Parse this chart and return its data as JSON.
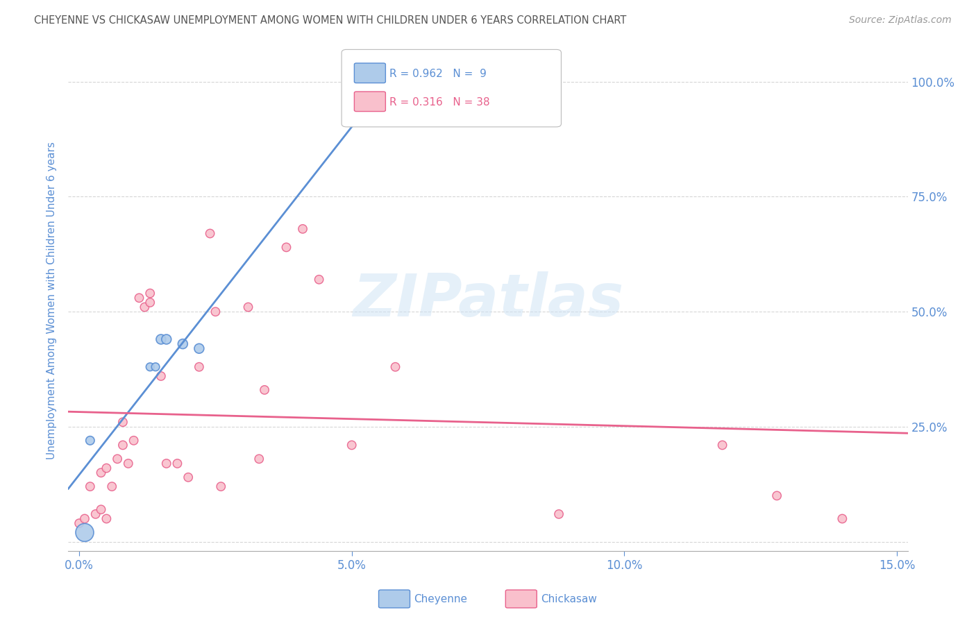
{
  "title": "CHEYENNE VS CHICKASAW UNEMPLOYMENT AMONG WOMEN WITH CHILDREN UNDER 6 YEARS CORRELATION CHART",
  "source": "Source: ZipAtlas.com",
  "ylabel": "Unemployment Among Women with Children Under 6 years",
  "watermark": "ZIPatlas",
  "legend_label1": "Cheyenne",
  "legend_label2": "Chickasaw",
  "R_cheyenne": 0.962,
  "N_cheyenne": 9,
  "R_chickasaw": 0.316,
  "N_chickasaw": 38,
  "cheyenne_color": "#aecbea",
  "chickasaw_color": "#f9c0cc",
  "cheyenne_line_color": "#5b8fd4",
  "chickasaw_line_color": "#e8618c",
  "title_color": "#555555",
  "axis_color": "#5b8fd4",
  "grid_color": "#cccccc",
  "background_color": "#ffffff",
  "cheyenne_x": [
    0.001,
    0.002,
    0.013,
    0.014,
    0.015,
    0.016,
    0.019,
    0.022,
    0.056
  ],
  "cheyenne_y": [
    0.02,
    0.22,
    0.38,
    0.38,
    0.44,
    0.44,
    0.43,
    0.42,
    0.97
  ],
  "cheyenne_sizes": [
    350,
    80,
    70,
    70,
    100,
    100,
    100,
    100,
    80
  ],
  "chickasaw_x": [
    0.0,
    0.001,
    0.002,
    0.003,
    0.004,
    0.004,
    0.005,
    0.005,
    0.006,
    0.007,
    0.008,
    0.008,
    0.009,
    0.01,
    0.011,
    0.012,
    0.013,
    0.013,
    0.015,
    0.016,
    0.018,
    0.02,
    0.022,
    0.024,
    0.025,
    0.026,
    0.031,
    0.033,
    0.034,
    0.038,
    0.041,
    0.044,
    0.05,
    0.058,
    0.088,
    0.118,
    0.128,
    0.14
  ],
  "chickasaw_y": [
    0.04,
    0.05,
    0.12,
    0.06,
    0.07,
    0.15,
    0.16,
    0.05,
    0.12,
    0.18,
    0.26,
    0.21,
    0.17,
    0.22,
    0.53,
    0.51,
    0.52,
    0.54,
    0.36,
    0.17,
    0.17,
    0.14,
    0.38,
    0.67,
    0.5,
    0.12,
    0.51,
    0.18,
    0.33,
    0.64,
    0.68,
    0.57,
    0.21,
    0.38,
    0.06,
    0.21,
    0.1,
    0.05
  ],
  "chickasaw_sizes": [
    80,
    80,
    80,
    80,
    80,
    80,
    80,
    80,
    80,
    80,
    80,
    80,
    80,
    80,
    80,
    80,
    80,
    80,
    80,
    80,
    80,
    80,
    80,
    80,
    80,
    80,
    80,
    80,
    80,
    80,
    80,
    80,
    80,
    80,
    80,
    80,
    80,
    80
  ],
  "xlim": [
    -0.002,
    0.152
  ],
  "ylim": [
    -0.02,
    1.07
  ],
  "xticks": [
    0.0,
    0.05,
    0.1,
    0.15
  ],
  "xtick_labels": [
    "0.0%",
    "5.0%",
    "10.0%",
    "15.0%"
  ],
  "yticks": [
    0.0,
    0.25,
    0.5,
    0.75,
    1.0
  ],
  "ytick_labels_right": [
    "",
    "25.0%",
    "50.0%",
    "75.0%",
    "100.0%"
  ]
}
